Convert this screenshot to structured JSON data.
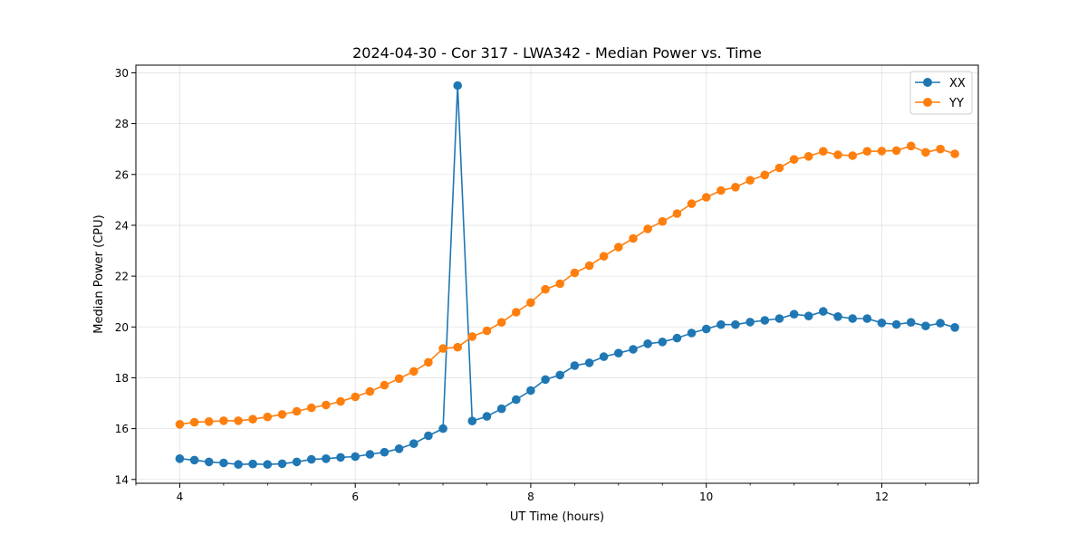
{
  "chart_data": {
    "type": "line",
    "title": "2024-04-30 - Cor 317 - LWA342 - Median Power vs. Time",
    "xlabel": "UT Time (hours)",
    "ylabel": "Median Power (CPU)",
    "xlim": [
      3.5,
      13.1
    ],
    "ylim": [
      13.85,
      30.3
    ],
    "xticks": [
      4,
      6,
      8,
      10,
      12
    ],
    "xtick_labels": [
      "4",
      "6",
      "8",
      "10",
      "12"
    ],
    "yticks": [
      14,
      16,
      18,
      20,
      22,
      24,
      26,
      28,
      30
    ],
    "ytick_labels": [
      "14",
      "16",
      "18",
      "20",
      "22",
      "24",
      "26",
      "28",
      "30"
    ],
    "grid": true,
    "legend_position": "top-right",
    "x": [
      4.0,
      4.167,
      4.333,
      4.5,
      4.667,
      4.833,
      5.0,
      5.167,
      5.333,
      5.5,
      5.667,
      5.833,
      6.0,
      6.167,
      6.333,
      6.5,
      6.667,
      6.833,
      7.0,
      7.167,
      7.333,
      7.5,
      7.667,
      7.833,
      8.0,
      8.167,
      8.333,
      8.5,
      8.667,
      8.833,
      9.0,
      9.167,
      9.333,
      9.5,
      9.667,
      9.833,
      10.0,
      10.167,
      10.333,
      10.5,
      10.667,
      10.833,
      11.0,
      11.167,
      11.333,
      11.5,
      11.667,
      11.833,
      12.0,
      12.167,
      12.333,
      12.5,
      12.667,
      12.833
    ],
    "series": [
      {
        "name": "XX",
        "color": "#1f77b4",
        "values": [
          14.82,
          14.76,
          14.69,
          14.65,
          14.59,
          14.61,
          14.59,
          14.62,
          14.69,
          14.79,
          14.82,
          14.87,
          14.9,
          14.99,
          15.07,
          15.21,
          15.41,
          15.72,
          16.0,
          29.5,
          16.3,
          16.48,
          16.78,
          17.14,
          17.5,
          17.93,
          18.11,
          18.48,
          18.59,
          18.83,
          18.97,
          19.12,
          19.34,
          19.41,
          19.56,
          19.76,
          19.92,
          20.09,
          20.09,
          20.19,
          20.26,
          20.33,
          20.5,
          20.43,
          20.61,
          20.41,
          20.33,
          20.33,
          20.16,
          20.1,
          20.18,
          20.04,
          20.15,
          19.98
        ]
      },
      {
        "name": "YY",
        "color": "#ff7f0e",
        "values": [
          16.17,
          16.25,
          16.28,
          16.31,
          16.31,
          16.37,
          16.46,
          16.56,
          16.68,
          16.82,
          16.93,
          17.07,
          17.25,
          17.46,
          17.71,
          17.97,
          18.25,
          18.61,
          19.15,
          19.2,
          19.62,
          19.85,
          20.18,
          20.58,
          20.96,
          21.48,
          21.7,
          22.13,
          22.41,
          22.78,
          23.14,
          23.48,
          23.86,
          24.15,
          24.46,
          24.85,
          25.1,
          25.37,
          25.5,
          25.77,
          25.98,
          26.26,
          26.59,
          26.71,
          26.91,
          26.77,
          26.74,
          26.91,
          26.92,
          26.94,
          27.12,
          26.87,
          27.0,
          26.81
        ]
      }
    ]
  }
}
